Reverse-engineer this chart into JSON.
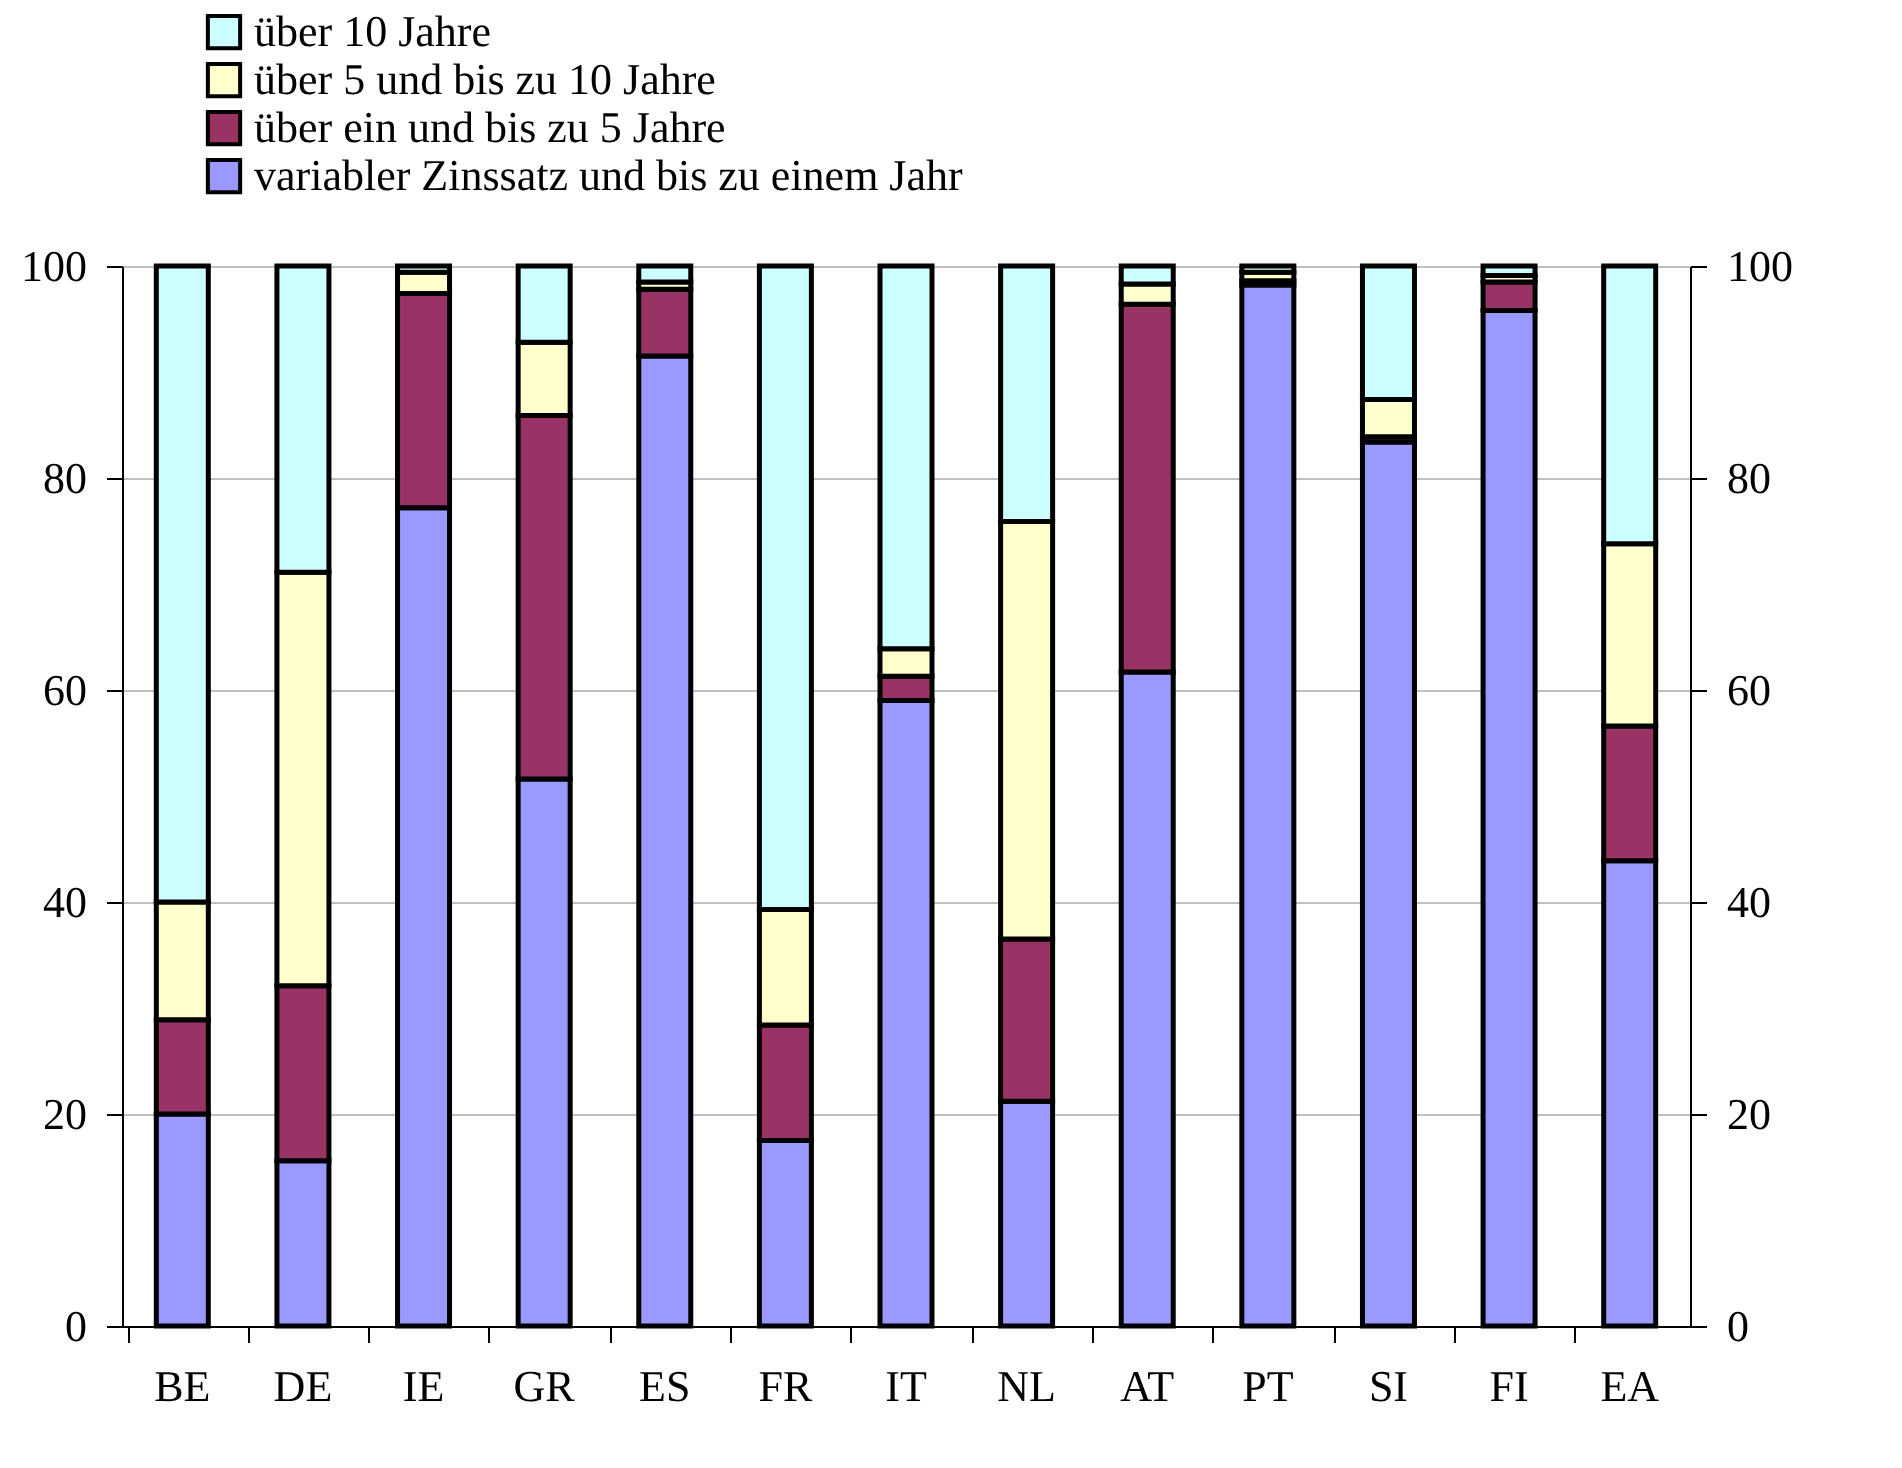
{
  "chart_data": {
    "type": "bar",
    "stacked": true,
    "categories": [
      "BE",
      "DE",
      "IE",
      "GR",
      "ES",
      "FR",
      "IT",
      "NL",
      "AT",
      "PT",
      "SI",
      "FI",
      "EA"
    ],
    "series": [
      {
        "name": "variabler Zinssatz und bis zu einem Jahr",
        "color": "#9999ff",
        "values": [
          20.0,
          15.6,
          77.2,
          51.6,
          91.5,
          17.5,
          59.0,
          21.2,
          61.7,
          98.2,
          83.4,
          95.8,
          43.9
        ]
      },
      {
        "name": "über ein und bis zu 5 Jahre",
        "color": "#993366",
        "values": [
          8.9,
          16.5,
          20.2,
          34.3,
          6.3,
          10.9,
          2.3,
          15.3,
          34.7,
          0.4,
          0.5,
          2.7,
          12.7
        ]
      },
      {
        "name": "über 5 und bis zu 10 Jahre",
        "color": "#ffffcc",
        "values": [
          11.1,
          39.0,
          2.0,
          6.9,
          0.7,
          10.9,
          2.6,
          39.4,
          1.9,
          0.8,
          3.5,
          0.6,
          17.2
        ]
      },
      {
        "name": "über 10 Jahre",
        "color": "#ccffff",
        "values": [
          60.0,
          28.9,
          0.6,
          7.2,
          1.5,
          60.7,
          36.1,
          24.1,
          1.7,
          0.6,
          12.6,
          0.9,
          26.2
        ]
      }
    ],
    "ylim": [
      0,
      100
    ],
    "yticks": [
      0,
      20,
      40,
      60,
      80,
      100
    ],
    "y2lim": [
      0,
      100
    ],
    "y2ticks": [
      0,
      20,
      40,
      60,
      80,
      100
    ],
    "grid": "y",
    "legend": "top"
  }
}
